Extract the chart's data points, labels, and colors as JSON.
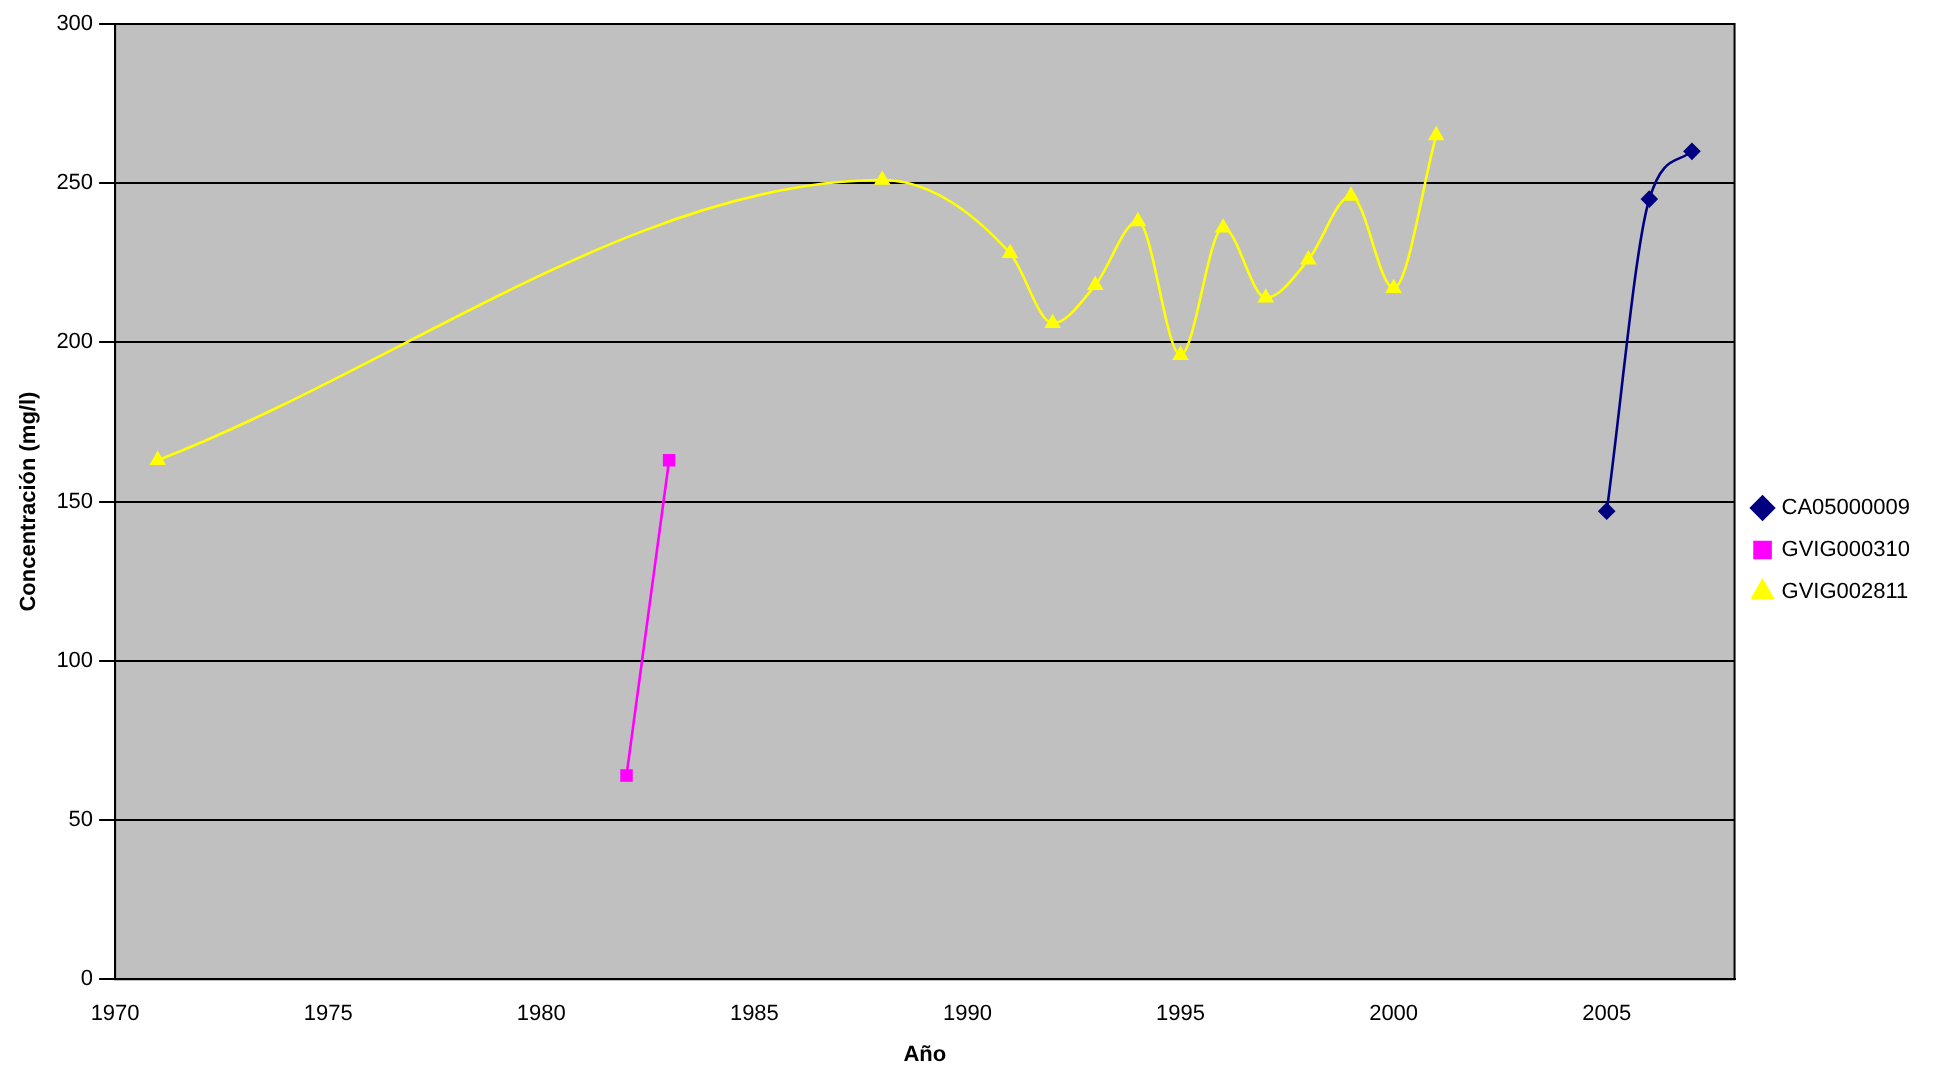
{
  "chart_data": {
    "type": "line",
    "xlabel": "Año",
    "ylabel": "Concentración (mg/l)",
    "xlim": [
      1970,
      2008
    ],
    "xticks": [
      1970,
      1975,
      1980,
      1985,
      1990,
      1995,
      2000,
      2005
    ],
    "ylim": [
      0,
      300
    ],
    "yticks": [
      0,
      50,
      100,
      150,
      200,
      250,
      300
    ],
    "grid": "y",
    "legend": "right",
    "series": [
      {
        "name": "CA05000009",
        "color": "#000080",
        "marker": "diamond",
        "x": [
          2005,
          2006,
          2007
        ],
        "values": [
          147,
          245,
          260
        ]
      },
      {
        "name": "GVIG000310",
        "color": "#ff00ff",
        "marker": "square",
        "x": [
          1982,
          1983
        ],
        "values": [
          64,
          163
        ]
      },
      {
        "name": "GVIG002811",
        "color": "#ffff00",
        "marker": "triangle",
        "x": [
          1971,
          1988,
          1991,
          1992,
          1993,
          1994,
          1995,
          1996,
          1997,
          1998,
          1999,
          2000,
          2001
        ],
        "values": [
          163,
          251,
          228,
          206,
          218,
          238,
          196,
          236,
          214,
          226,
          246,
          217,
          265
        ]
      }
    ]
  }
}
